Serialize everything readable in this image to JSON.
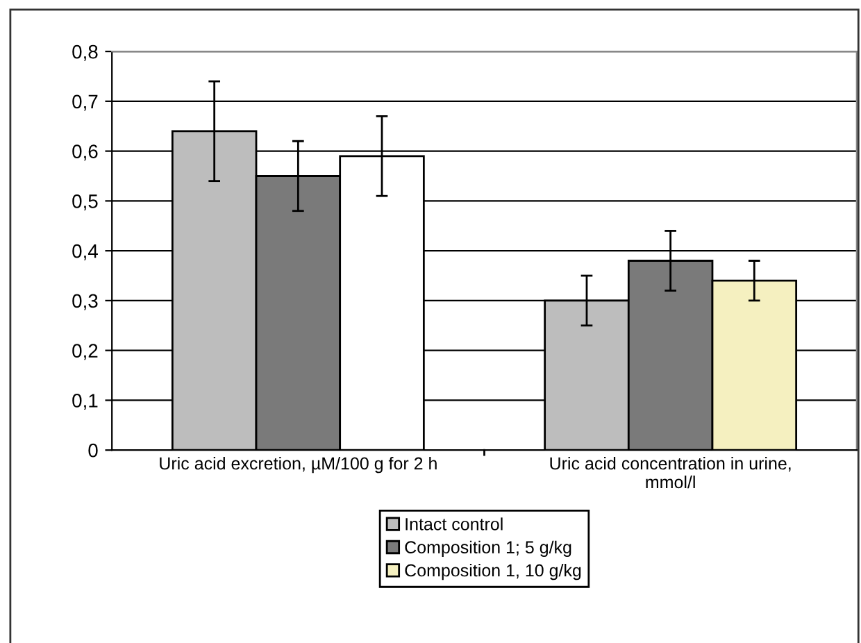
{
  "chart_data": {
    "type": "bar",
    "categories": [
      "Uric acid excretion, µM/100 g for 2 h",
      "Uric acid concentration in urine,\nmmol/l"
    ],
    "series": [
      {
        "name": "Intact control",
        "color": "#bdbdbd",
        "values": [
          0.64,
          0.3
        ],
        "errors": [
          0.1,
          0.05
        ]
      },
      {
        "name": "Composition 1; 5 g/kg",
        "color": "#7a7a7a",
        "values": [
          0.55,
          0.38
        ],
        "errors": [
          0.07,
          0.06
        ]
      },
      {
        "name": "Composition 1, 10 g/kg",
        "colors": [
          "#ffffff",
          "#f5f0c0"
        ],
        "values": [
          0.59,
          0.34
        ],
        "errors": [
          0.08,
          0.04
        ]
      }
    ],
    "ylim": [
      0,
      0.8
    ],
    "yticks": [
      0,
      {
        "value": 0.1,
        "label": "0,1"
      },
      {
        "value": 0.2,
        "label": "0,2"
      },
      {
        "value": 0.3,
        "label": "0,3"
      },
      {
        "value": 0.4,
        "label": "0,4"
      },
      {
        "value": 0.5,
        "label": "0,5"
      },
      {
        "value": 0.6,
        "label": "0,6"
      },
      {
        "value": 0.7,
        "label": "0,7"
      },
      {
        "value": 0.8,
        "label": "0,8"
      }
    ],
    "grid": "y",
    "legend": "bottom"
  }
}
